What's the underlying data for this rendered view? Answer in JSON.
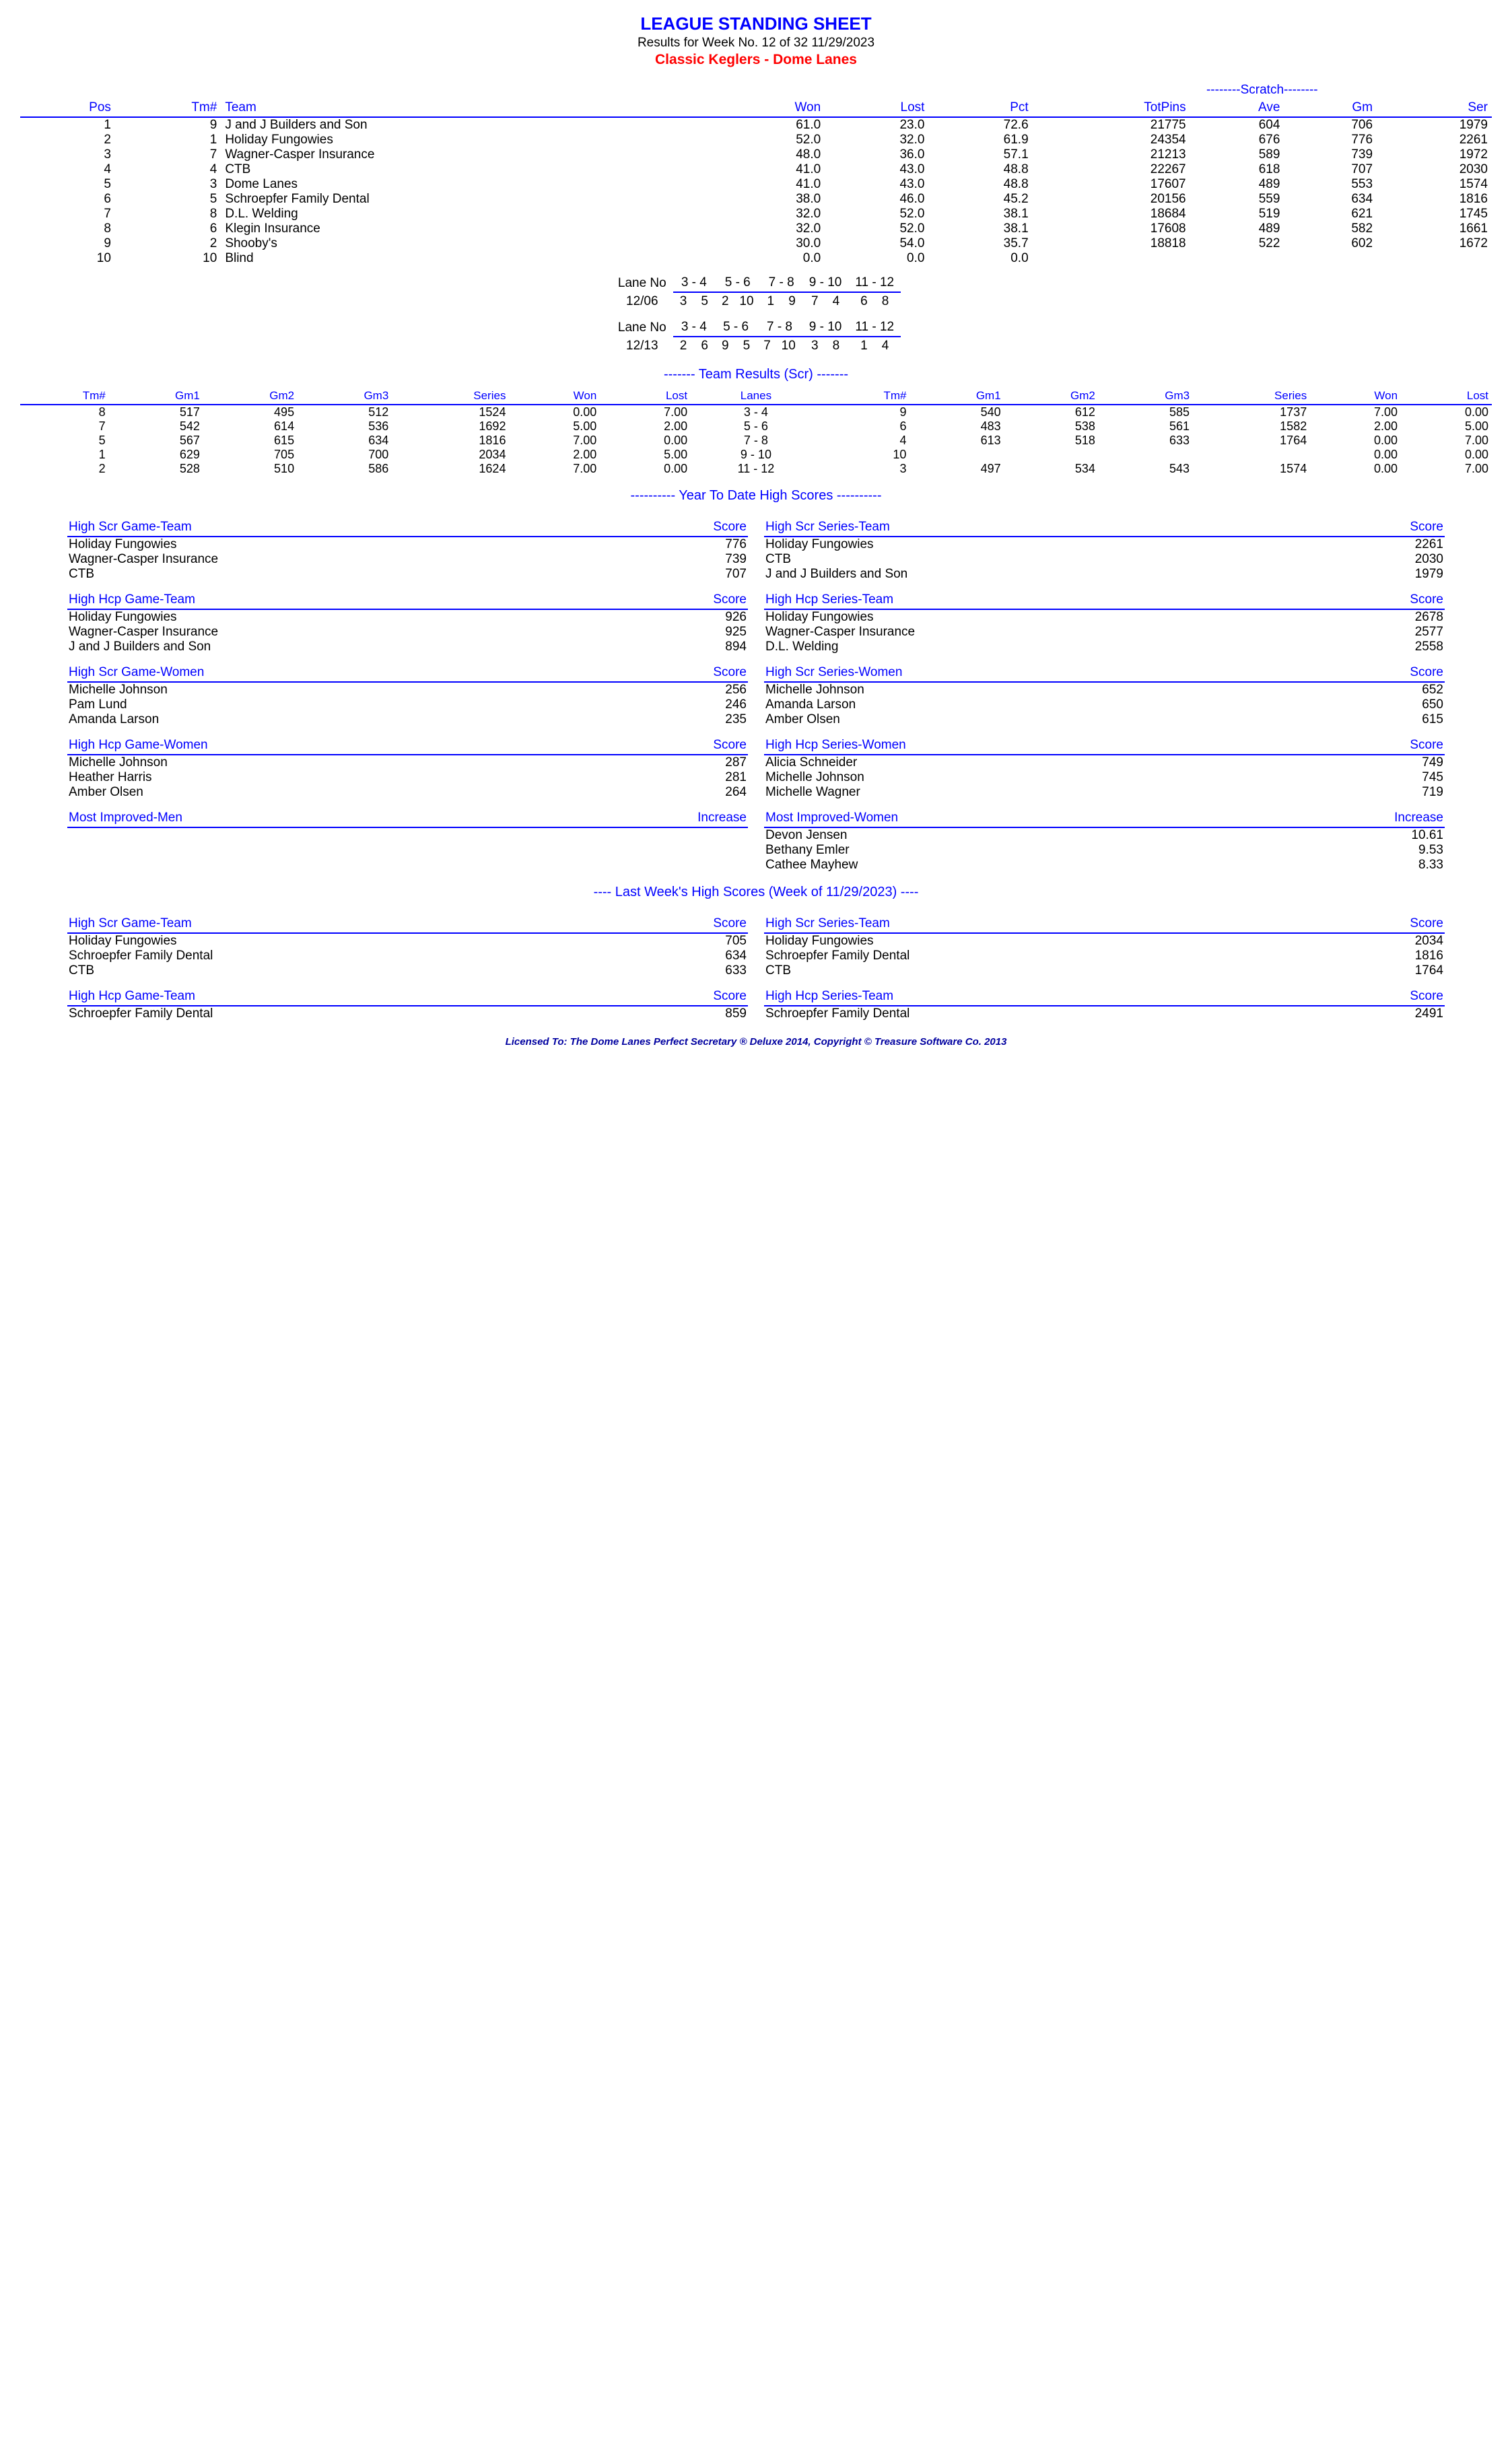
{
  "header": {
    "title": "LEAGUE STANDING SHEET",
    "results_line": "Results for Week No. 12 of 32    11/29/2023",
    "league": "Classic Keglers - Dome Lanes"
  },
  "standings": {
    "scratch_label": "--------Scratch--------",
    "cols": [
      "Pos",
      "Tm#",
      "Team",
      "Won",
      "Lost",
      "Pct",
      "TotPins",
      "Ave",
      "Gm",
      "Ser"
    ],
    "rows": [
      [
        "1",
        "9",
        "J and J Builders and Son",
        "61.0",
        "23.0",
        "72.6",
        "21775",
        "604",
        "706",
        "1979"
      ],
      [
        "2",
        "1",
        "Holiday Fungowies",
        "52.0",
        "32.0",
        "61.9",
        "24354",
        "676",
        "776",
        "2261"
      ],
      [
        "3",
        "7",
        "Wagner-Casper Insurance",
        "48.0",
        "36.0",
        "57.1",
        "21213",
        "589",
        "739",
        "1972"
      ],
      [
        "4",
        "4",
        "CTB",
        "41.0",
        "43.0",
        "48.8",
        "22267",
        "618",
        "707",
        "2030"
      ],
      [
        "5",
        "3",
        "Dome Lanes",
        "41.0",
        "43.0",
        "48.8",
        "17607",
        "489",
        "553",
        "1574"
      ],
      [
        "6",
        "5",
        "Schroepfer Family Dental",
        "38.0",
        "46.0",
        "45.2",
        "20156",
        "559",
        "634",
        "1816"
      ],
      [
        "7",
        "8",
        "D.L. Welding",
        "32.0",
        "52.0",
        "38.1",
        "18684",
        "519",
        "621",
        "1745"
      ],
      [
        "8",
        "6",
        "Klegin Insurance",
        "32.0",
        "52.0",
        "38.1",
        "17608",
        "489",
        "582",
        "1661"
      ],
      [
        "9",
        "2",
        "Shooby's",
        "30.0",
        "54.0",
        "35.7",
        "18818",
        "522",
        "602",
        "1672"
      ],
      [
        "10",
        "10",
        "Blind",
        "0.0",
        "0.0",
        "0.0",
        "",
        "",
        "",
        ""
      ]
    ]
  },
  "lanes": [
    {
      "label": "Lane No",
      "date": "12/06",
      "pairs": [
        "3 -  4",
        "5 -  6",
        "7 -  8",
        "9 - 10",
        "11 - 12"
      ],
      "teams": [
        "3    5",
        "2   10",
        "1    9",
        "7    4",
        "6    8"
      ]
    },
    {
      "label": "Lane No",
      "date": "12/13",
      "pairs": [
        "3 -  4",
        "5 -  6",
        "7 -  8",
        "9 - 10",
        "11 - 12"
      ],
      "teams": [
        "2    6",
        "9    5",
        "7   10",
        "3    8",
        "1    4"
      ]
    }
  ],
  "team_results": {
    "title": "-------  Team Results (Scr)  -------",
    "cols": [
      "Tm#",
      "Gm1",
      "Gm2",
      "Gm3",
      "Series",
      "Won",
      "Lost",
      "Lanes",
      "Tm#",
      "Gm1",
      "Gm2",
      "Gm3",
      "Series",
      "Won",
      "Lost"
    ],
    "rows": [
      [
        "8",
        "517",
        "495",
        "512",
        "1524",
        "0.00",
        "7.00",
        "3  -  4",
        "9",
        "540",
        "612",
        "585",
        "1737",
        "7.00",
        "0.00"
      ],
      [
        "7",
        "542",
        "614",
        "536",
        "1692",
        "5.00",
        "2.00",
        "5  -  6",
        "6",
        "483",
        "538",
        "561",
        "1582",
        "2.00",
        "5.00"
      ],
      [
        "5",
        "567",
        "615",
        "634",
        "1816",
        "7.00",
        "0.00",
        "7  -  8",
        "4",
        "613",
        "518",
        "633",
        "1764",
        "0.00",
        "7.00"
      ],
      [
        "1",
        "629",
        "705",
        "700",
        "2034",
        "2.00",
        "5.00",
        "9  - 10",
        "10",
        "",
        "",
        "",
        "",
        "0.00",
        "0.00"
      ],
      [
        "2",
        "528",
        "510",
        "586",
        "1624",
        "7.00",
        "0.00",
        "11  - 12",
        "3",
        "497",
        "534",
        "543",
        "1574",
        "0.00",
        "7.00"
      ]
    ]
  },
  "ytd": {
    "title": "----------  Year To Date High Scores  ----------",
    "blocks": [
      [
        {
          "header": [
            "High Scr Game-Team",
            "Score"
          ],
          "rows": [
            [
              "Holiday Fungowies",
              "776"
            ],
            [
              "Wagner-Casper Insurance",
              "739"
            ],
            [
              "CTB",
              "707"
            ]
          ]
        },
        {
          "header": [
            "High Scr Series-Team",
            "Score"
          ],
          "rows": [
            [
              "Holiday Fungowies",
              "2261"
            ],
            [
              "CTB",
              "2030"
            ],
            [
              "J and J Builders and Son",
              "1979"
            ]
          ]
        }
      ],
      [
        {
          "header": [
            "High Hcp Game-Team",
            "Score"
          ],
          "rows": [
            [
              "Holiday Fungowies",
              "926"
            ],
            [
              "Wagner-Casper Insurance",
              "925"
            ],
            [
              "J and J Builders and Son",
              "894"
            ]
          ]
        },
        {
          "header": [
            "High Hcp Series-Team",
            "Score"
          ],
          "rows": [
            [
              "Holiday Fungowies",
              "2678"
            ],
            [
              "Wagner-Casper Insurance",
              "2577"
            ],
            [
              "D.L. Welding",
              "2558"
            ]
          ]
        }
      ],
      [
        {
          "header": [
            "High Scr Game-Women",
            "Score"
          ],
          "rows": [
            [
              "Michelle Johnson",
              "256"
            ],
            [
              "Pam Lund",
              "246"
            ],
            [
              "Amanda Larson",
              "235"
            ]
          ]
        },
        {
          "header": [
            "High Scr Series-Women",
            "Score"
          ],
          "rows": [
            [
              "Michelle Johnson",
              "652"
            ],
            [
              "Amanda Larson",
              "650"
            ],
            [
              "Amber Olsen",
              "615"
            ]
          ]
        }
      ],
      [
        {
          "header": [
            "High Hcp Game-Women",
            "Score"
          ],
          "rows": [
            [
              "Michelle Johnson",
              "287"
            ],
            [
              "Heather Harris",
              "281"
            ],
            [
              "Amber Olsen",
              "264"
            ]
          ]
        },
        {
          "header": [
            "High Hcp Series-Women",
            "Score"
          ],
          "rows": [
            [
              "Alicia Schneider",
              "749"
            ],
            [
              "Michelle Johnson",
              "745"
            ],
            [
              "Michelle Wagner",
              "719"
            ]
          ]
        }
      ],
      [
        {
          "header": [
            "Most Improved-Men",
            "Increase"
          ],
          "rows": []
        },
        {
          "header": [
            "Most Improved-Women",
            "Increase"
          ],
          "rows": [
            [
              "Devon Jensen",
              "10.61"
            ],
            [
              "Bethany Emler",
              "9.53"
            ],
            [
              "Cathee Mayhew",
              "8.33"
            ]
          ]
        }
      ]
    ]
  },
  "lastweek": {
    "title": "----   Last Week's High Scores   (Week of 11/29/2023)   ----",
    "blocks": [
      [
        {
          "header": [
            "High Scr Game-Team",
            "Score"
          ],
          "rows": [
            [
              "Holiday Fungowies",
              "705"
            ],
            [
              "Schroepfer Family Dental",
              "634"
            ],
            [
              "CTB",
              "633"
            ]
          ]
        },
        {
          "header": [
            "High Scr Series-Team",
            "Score"
          ],
          "rows": [
            [
              "Holiday Fungowies",
              "2034"
            ],
            [
              "Schroepfer Family Dental",
              "1816"
            ],
            [
              "CTB",
              "1764"
            ]
          ]
        }
      ],
      [
        {
          "header": [
            "High Hcp Game-Team",
            "Score"
          ],
          "rows": [
            [
              "Schroepfer Family Dental",
              "859"
            ]
          ]
        },
        {
          "header": [
            "High Hcp Series-Team",
            "Score"
          ],
          "rows": [
            [
              "Schroepfer Family Dental",
              "2491"
            ]
          ]
        }
      ]
    ]
  },
  "footer": "Licensed To: The Dome Lanes    Perfect Secretary ® Deluxe  2014, Copyright © Treasure Software Co. 2013"
}
